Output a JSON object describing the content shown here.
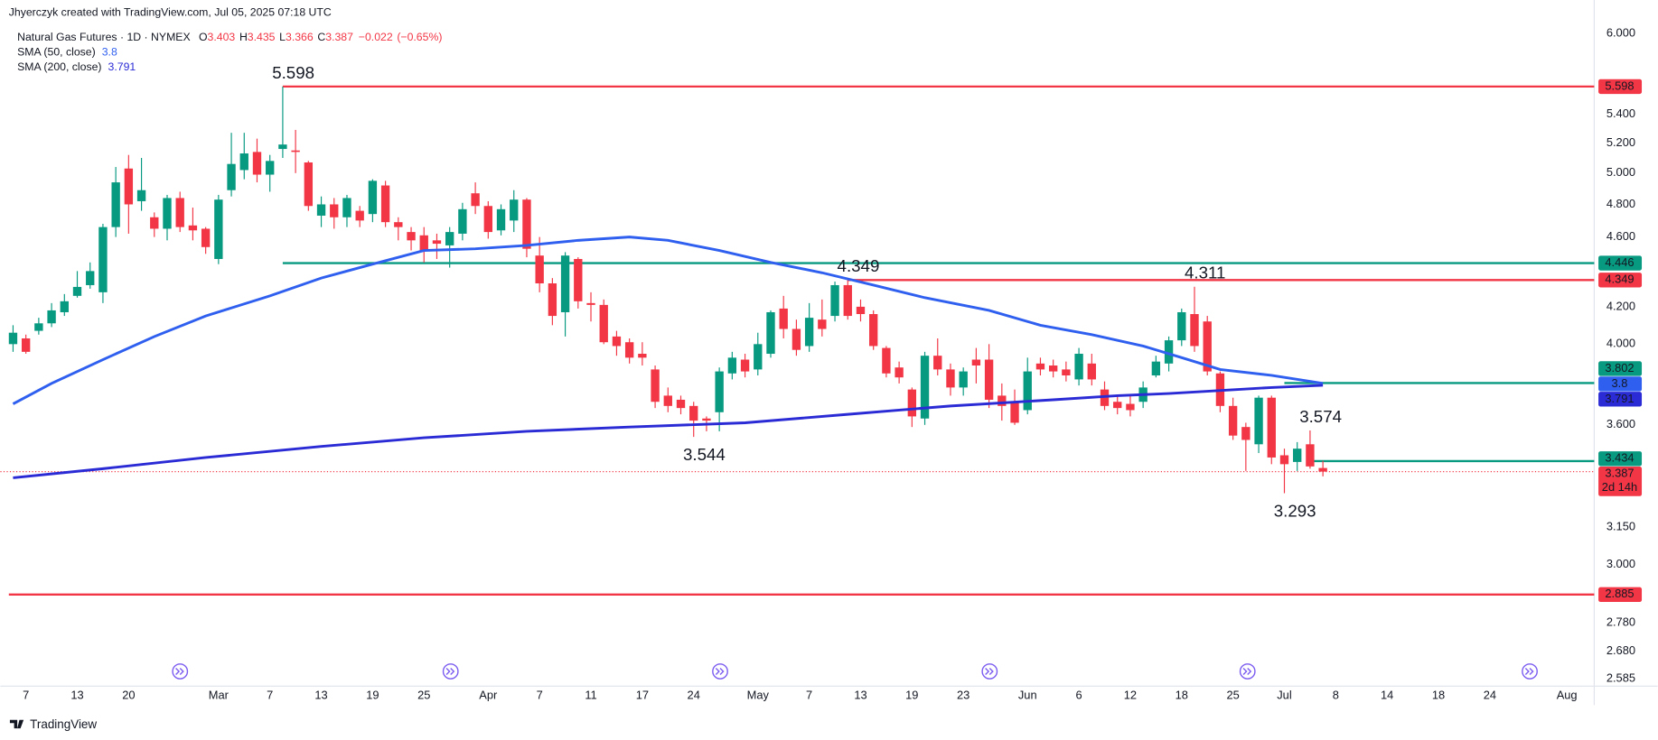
{
  "chart_data": {
    "type": "candlestick",
    "caption": "Jhyerczyk created with TradingView.com, Jul 05, 2025 07:18 UTC",
    "title": "Natural Gas Futures · 1D · NYMEX",
    "ohlc_letters": [
      "O",
      "H",
      "L",
      "C"
    ],
    "change": "−0.022",
    "change_pct": "(−0.65%)",
    "countdown": "2d 14h",
    "footer": "TradingView",
    "up_color": "#089981",
    "down_color": "#f23645",
    "log_scale": true,
    "grid": false,
    "ylim": [
      2.56,
      6.08
    ],
    "yticks": [
      {
        "value": 6,
        "label": "6.000"
      },
      {
        "value": 5.4,
        "label": "5.400"
      },
      {
        "value": 5.2,
        "label": "5.200"
      },
      {
        "value": 5,
        "label": "5.000"
      },
      {
        "value": 4.8,
        "label": "4.800"
      },
      {
        "value": 4.6,
        "label": "4.600"
      },
      {
        "value": 4.2,
        "label": "4.200"
      },
      {
        "value": 4,
        "label": "4.000"
      },
      {
        "value": 3.6,
        "label": "3.600"
      },
      {
        "value": 3.15,
        "label": "3.150"
      },
      {
        "value": 3,
        "label": "3.000"
      },
      {
        "value": 2.78,
        "label": "2.780"
      },
      {
        "value": 2.68,
        "label": "2.680"
      },
      2.585
    ],
    "xticks": [
      {
        "value": 1,
        "label": "7"
      },
      {
        "value": 5,
        "label": "13"
      },
      {
        "value": 9,
        "label": "20"
      },
      {
        "value": 16,
        "label": "Mar"
      },
      {
        "value": 20,
        "label": "7"
      },
      {
        "value": 24,
        "label": "13"
      },
      {
        "value": 28,
        "label": "19"
      },
      {
        "value": 32,
        "label": "25"
      },
      {
        "value": 37,
        "label": "Apr"
      },
      {
        "value": 41,
        "label": "7"
      },
      {
        "value": 45,
        "label": "11"
      },
      {
        "value": 49,
        "label": "17"
      },
      {
        "value": 53,
        "label": "24"
      },
      {
        "value": 58,
        "label": "May"
      },
      {
        "value": 62,
        "label": "7"
      },
      {
        "value": 66,
        "label": "13"
      },
      {
        "value": 70,
        "label": "19"
      },
      {
        "value": 74,
        "label": "23"
      },
      {
        "value": 79,
        "label": "Jun"
      },
      {
        "value": 83,
        "label": "6"
      },
      {
        "value": 87,
        "label": "12"
      },
      {
        "value": 91,
        "label": "18"
      },
      {
        "value": 95,
        "label": "25"
      },
      {
        "value": 99,
        "label": "Jul"
      },
      {
        "value": 103,
        "label": "8"
      },
      {
        "value": 107,
        "label": "14"
      },
      {
        "value": 111,
        "label": "18"
      },
      {
        "value": 115,
        "label": "24"
      },
      {
        "value": 121,
        "label": "Aug"
      }
    ],
    "candles": {
      "open": [
        4.0,
        4.03,
        4.07,
        4.11,
        4.17,
        4.26,
        4.32,
        4.28,
        4.66,
        5.03,
        4.82,
        4.72,
        4.65,
        4.84,
        4.67,
        4.65,
        4.47,
        4.89,
        5.02,
        5.14,
        4.99,
        5.16,
        5.15,
        5.07,
        4.73,
        4.8,
        4.72,
        4.76,
        4.74,
        4.92,
        4.69,
        4.63,
        4.61,
        4.58,
        4.55,
        4.62,
        4.87,
        4.79,
        4.64,
        4.7,
        4.83,
        4.49,
        4.33,
        4.17,
        4.47,
        4.22,
        4.21,
        4.04,
        4.01,
        3.95,
        3.87,
        3.74,
        3.72,
        3.69,
        3.63,
        3.66,
        3.85,
        3.92,
        3.87,
        3.95,
        4.19,
        4.08,
        3.99,
        4.13,
        4.15,
        4.32,
        4.2,
        4.16,
        3.98,
        3.88,
        3.77,
        3.63,
        3.94,
        3.87,
        3.78,
        3.92,
        3.92,
        3.74,
        3.71,
        3.67,
        3.9,
        3.89,
        3.87,
        3.82,
        3.9,
        3.77,
        3.71,
        3.7,
        3.71,
        3.84,
        3.9,
        4.02,
        4.16,
        4.12,
        3.85,
        3.69,
        3.59,
        3.51,
        3.73,
        3.46,
        3.43,
        3.51,
        3.403
      ],
      "high": [
        4.1,
        4.05,
        4.14,
        4.22,
        4.27,
        4.4,
        4.45,
        4.68,
        5.04,
        5.12,
        5.1,
        4.75,
        4.86,
        4.88,
        4.78,
        4.66,
        4.86,
        5.27,
        5.27,
        5.23,
        5.12,
        5.598,
        5.29,
        5.08,
        4.85,
        4.84,
        4.86,
        4.79,
        4.96,
        4.95,
        4.72,
        4.66,
        4.66,
        4.62,
        4.66,
        4.81,
        4.94,
        4.82,
        4.8,
        4.89,
        4.84,
        4.6,
        4.36,
        4.51,
        4.48,
        4.28,
        4.24,
        4.07,
        4.03,
        4.01,
        3.89,
        3.78,
        3.74,
        3.71,
        3.64,
        3.88,
        3.96,
        3.95,
        4.06,
        4.18,
        4.26,
        4.13,
        4.22,
        4.24,
        4.34,
        4.349,
        4.24,
        4.18,
        3.99,
        3.91,
        3.78,
        3.96,
        4.03,
        3.9,
        3.88,
        3.98,
        4.0,
        3.8,
        3.77,
        3.93,
        3.93,
        3.92,
        3.91,
        3.98,
        3.95,
        3.81,
        3.74,
        3.74,
        3.81,
        3.94,
        4.04,
        4.19,
        4.311,
        4.15,
        3.86,
        3.73,
        3.61,
        3.74,
        3.74,
        3.49,
        3.52,
        3.574,
        3.435
      ],
      "low": [
        3.96,
        3.95,
        4.05,
        4.09,
        4.15,
        4.25,
        4.3,
        4.22,
        4.6,
        4.62,
        4.76,
        4.6,
        4.58,
        4.63,
        4.58,
        4.5,
        4.44,
        4.85,
        4.96,
        4.94,
        4.88,
        5.1,
        5.0,
        4.76,
        4.66,
        4.65,
        4.66,
        4.66,
        4.69,
        4.66,
        4.58,
        4.52,
        4.45,
        4.47,
        4.42,
        4.58,
        4.74,
        4.59,
        4.61,
        4.63,
        4.48,
        4.28,
        4.1,
        4.04,
        4.19,
        4.12,
        4.0,
        3.94,
        3.9,
        3.89,
        3.68,
        3.66,
        3.65,
        3.544,
        3.57,
        3.57,
        3.82,
        3.83,
        3.84,
        3.93,
        4.03,
        3.94,
        3.96,
        4.04,
        4.12,
        4.13,
        4.12,
        3.97,
        3.83,
        3.8,
        3.59,
        3.6,
        3.84,
        3.74,
        3.74,
        3.8,
        3.68,
        3.62,
        3.6,
        3.65,
        3.84,
        3.83,
        3.81,
        3.79,
        3.79,
        3.67,
        3.65,
        3.64,
        3.68,
        3.83,
        3.86,
        3.99,
        3.96,
        3.84,
        3.66,
        3.53,
        3.39,
        3.47,
        3.42,
        3.293,
        3.39,
        3.4,
        3.366
      ],
      "close": [
        4.06,
        3.96,
        4.11,
        4.18,
        4.23,
        4.31,
        4.4,
        4.66,
        4.94,
        4.8,
        4.89,
        4.65,
        4.84,
        4.66,
        4.64,
        4.54,
        4.83,
        5.06,
        5.13,
        4.99,
        5.08,
        5.19,
        5.14,
        4.79,
        4.8,
        4.72,
        4.84,
        4.7,
        4.95,
        4.69,
        4.66,
        4.58,
        4.52,
        4.56,
        4.63,
        4.77,
        4.79,
        4.63,
        4.77,
        4.83,
        4.53,
        4.33,
        4.15,
        4.49,
        4.23,
        4.21,
        4.01,
        3.99,
        3.93,
        3.93,
        3.71,
        3.69,
        3.68,
        3.62,
        3.62,
        3.86,
        3.93,
        3.86,
        4.0,
        4.17,
        4.08,
        3.97,
        4.14,
        4.08,
        4.32,
        4.15,
        4.16,
        3.99,
        3.85,
        3.83,
        3.64,
        3.94,
        3.87,
        3.78,
        3.86,
        3.89,
        3.72,
        3.69,
        3.61,
        3.86,
        3.87,
        3.86,
        3.84,
        3.95,
        3.82,
        3.69,
        3.68,
        3.67,
        3.78,
        3.91,
        4.02,
        4.17,
        3.99,
        3.86,
        3.69,
        3.55,
        3.53,
        3.73,
        3.45,
        3.42,
        3.49,
        3.41,
        3.387
      ]
    },
    "series": [
      {
        "name": "SMA (50, close)",
        "color": "#2f5fef",
        "x": [
          0,
          3,
          7,
          11,
          15,
          20,
          24,
          28,
          32,
          36,
          40,
          44,
          48,
          51,
          55,
          59,
          63,
          67,
          71,
          76,
          80,
          84,
          88,
          91,
          94,
          98,
          102
        ],
        "values": [
          3.7,
          3.8,
          3.92,
          4.04,
          4.15,
          4.26,
          4.36,
          4.44,
          4.52,
          4.53,
          4.55,
          4.58,
          4.6,
          4.58,
          4.52,
          4.45,
          4.39,
          4.32,
          4.25,
          4.18,
          4.1,
          4.05,
          3.99,
          3.93,
          3.87,
          3.84,
          3.8
        ]
      },
      {
        "name": "SMA (200, close)",
        "color": "#2b2bd6",
        "x": [
          0,
          7,
          15,
          24,
          32,
          40,
          48,
          57,
          65,
          69,
          73,
          81,
          86,
          90,
          98,
          102
        ],
        "values": [
          3.36,
          3.4,
          3.45,
          3.5,
          3.54,
          3.57,
          3.59,
          3.61,
          3.65,
          3.67,
          3.69,
          3.72,
          3.74,
          3.75,
          3.78,
          3.791
        ]
      }
    ],
    "levels": [
      {
        "value": 5.598,
        "color": "#f23645",
        "from_index": 21
      },
      {
        "value": 4.446,
        "color": "#089981",
        "from_index": 21
      },
      {
        "value": 4.349,
        "color": "#f23645",
        "from_index": 65
      },
      {
        "value": 3.802,
        "color": "#089981",
        "from_index": 99
      },
      {
        "value": 3.434,
        "color": "#089981",
        "from_index": 101
      },
      {
        "value": 2.885,
        "color": "#f23645",
        "from_index": 0
      }
    ],
    "annotations": [
      {
        "value": 5.598,
        "index": 21,
        "kind": "high"
      },
      {
        "value": 4.349,
        "index": 65,
        "kind": "high"
      },
      {
        "value": 4.311,
        "index": 92,
        "kind": "high"
      },
      {
        "value": 3.544,
        "index": 53,
        "kind": "low"
      },
      {
        "value": 3.574,
        "index": 101,
        "kind": "high"
      },
      {
        "value": 3.293,
        "index": 99,
        "kind": "low"
      }
    ]
  }
}
